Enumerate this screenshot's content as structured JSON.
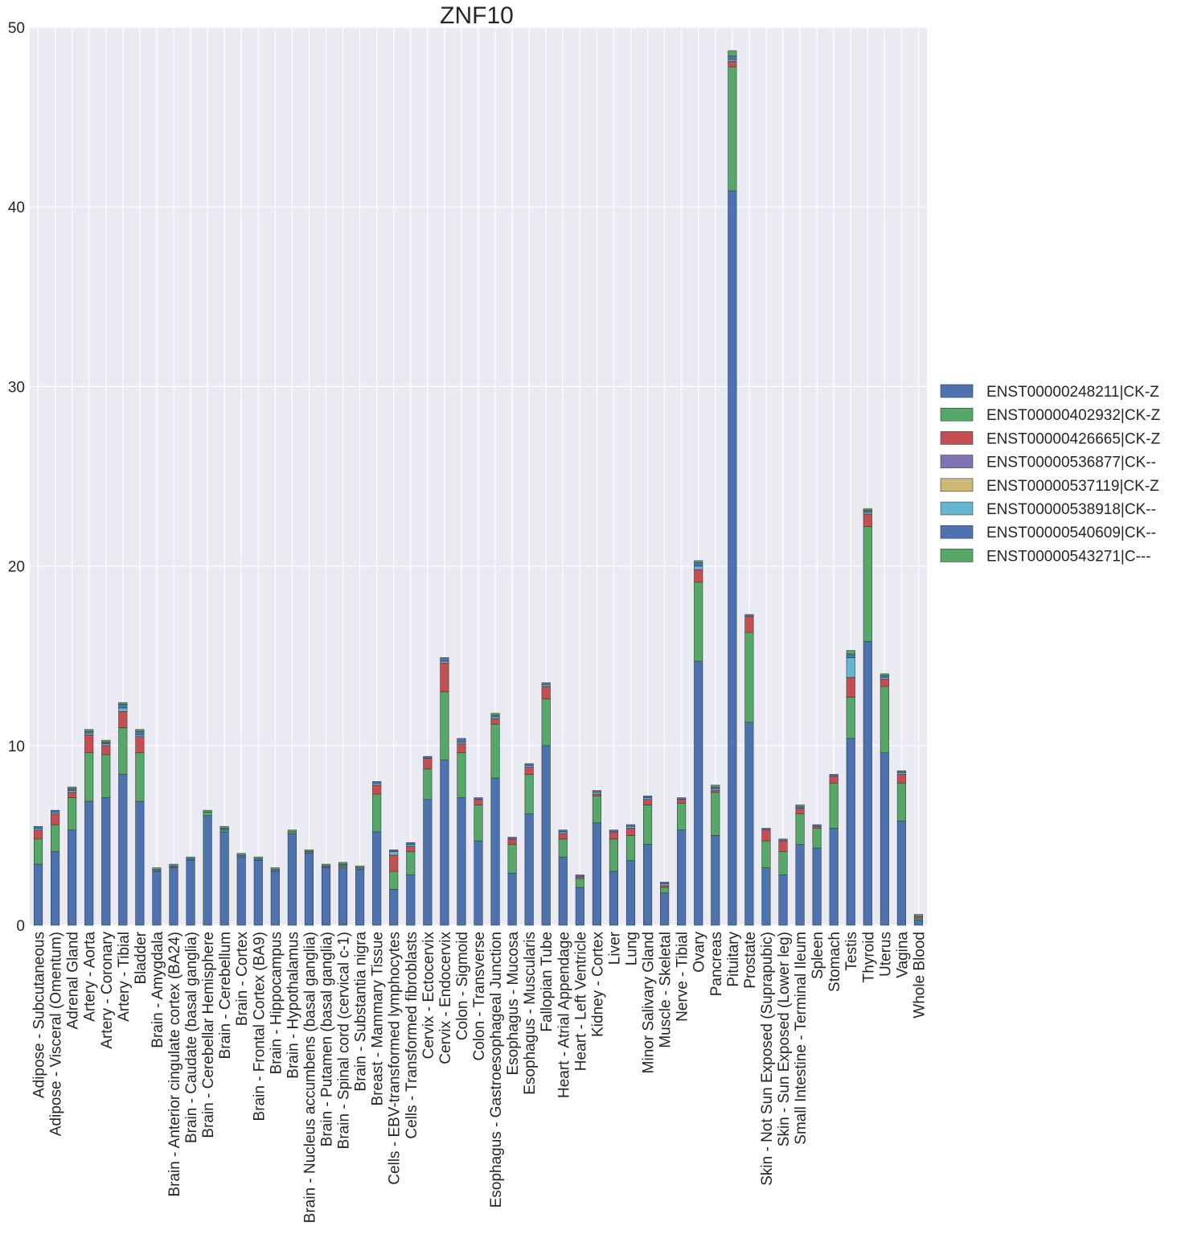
{
  "chart_data": {
    "type": "bar",
    "stacked": true,
    "title": "ZNF10",
    "xlabel": "",
    "ylabel": "",
    "ylim": [
      0,
      50
    ],
    "yticks": [
      "0",
      "10",
      "20",
      "30",
      "40",
      "50"
    ],
    "grid": true,
    "legend_position": "right",
    "categories": [
      "Adipose - Subcutaneous",
      "Adipose - Visceral (Omentum)",
      "Adrenal Gland",
      "Artery - Aorta",
      "Artery - Coronary",
      "Artery - Tibial",
      "Bladder",
      "Brain - Amygdala",
      "Brain - Anterior cingulate cortex (BA24)",
      "Brain - Caudate (basal ganglia)",
      "Brain - Cerebellar Hemisphere",
      "Brain - Cerebellum",
      "Brain - Cortex",
      "Brain - Frontal Cortex (BA9)",
      "Brain - Hippocampus",
      "Brain - Hypothalamus",
      "Brain - Nucleus accumbens (basal ganglia)",
      "Brain - Putamen (basal ganglia)",
      "Brain - Spinal cord (cervical c-1)",
      "Brain - Substantia nigra",
      "Breast - Mammary Tissue",
      "Cells - EBV-transformed lymphocytes",
      "Cells - Transformed fibroblasts",
      "Cervix - Ectocervix",
      "Cervix - Endocervix",
      "Colon - Sigmoid",
      "Colon - Transverse",
      "Esophagus - Gastroesophageal Junction",
      "Esophagus - Mucosa",
      "Esophagus - Muscularis",
      "Fallopian Tube",
      "Heart - Atrial Appendage",
      "Heart - Left Ventricle",
      "Kidney - Cortex",
      "Liver",
      "Lung",
      "Minor Salivary Gland",
      "Muscle - Skeletal",
      "Nerve - Tibial",
      "Ovary",
      "Pancreas",
      "Pituitary",
      "Prostate",
      "Skin - Not Sun Exposed (Suprapubic)",
      "Skin - Sun Exposed (Lower leg)",
      "Small Intestine - Terminal Ileum",
      "Spleen",
      "Stomach",
      "Testis",
      "Thyroid",
      "Uterus",
      "Vagina",
      "Whole Blood"
    ],
    "series": [
      {
        "name": "ENST00000248211|CK-Z",
        "color": "#4c72b0",
        "values": [
          3.4,
          4.1,
          5.3,
          6.9,
          7.1,
          8.4,
          6.9,
          3.0,
          3.2,
          3.6,
          6.1,
          5.2,
          3.8,
          3.6,
          3.0,
          5.1,
          4.0,
          3.2,
          3.2,
          3.1,
          5.2,
          2.0,
          2.8,
          7.0,
          9.2,
          7.1,
          4.7,
          8.2,
          2.9,
          6.2,
          10.0,
          3.8,
          2.1,
          5.7,
          3.0,
          3.6,
          4.5,
          1.8,
          5.3,
          14.7,
          5.0,
          40.9,
          11.3,
          3.2,
          2.8,
          4.5,
          4.3,
          5.4,
          10.4,
          15.8,
          9.6,
          5.8,
          0.3
        ]
      },
      {
        "name": "ENST00000402932|CK-Z",
        "color": "#55a868",
        "values": [
          1.4,
          1.5,
          1.8,
          2.7,
          2.4,
          2.6,
          2.7,
          0.0,
          0.0,
          0.0,
          0.2,
          0.1,
          0.0,
          0.0,
          0.0,
          0.1,
          0.0,
          0.0,
          0.1,
          0.0,
          2.1,
          1.0,
          1.3,
          1.7,
          3.8,
          2.5,
          2.0,
          3.0,
          1.6,
          2.2,
          2.6,
          1.0,
          0.5,
          1.5,
          1.8,
          1.4,
          2.2,
          0.3,
          1.5,
          4.4,
          2.4,
          6.9,
          5.0,
          1.5,
          1.3,
          1.7,
          1.1,
          2.5,
          2.3,
          6.4,
          3.7,
          2.1,
          0.1
        ]
      },
      {
        "name": "ENST00000426665|CK-Z",
        "color": "#c44e52",
        "values": [
          0.5,
          0.6,
          0.3,
          1.0,
          0.5,
          0.9,
          0.9,
          0.0,
          0.0,
          0.0,
          0.0,
          0.0,
          0.0,
          0.0,
          0.0,
          0.0,
          0.0,
          0.0,
          0.0,
          0.0,
          0.5,
          0.9,
          0.3,
          0.6,
          1.6,
          0.5,
          0.3,
          0.3,
          0.3,
          0.4,
          0.7,
          0.3,
          0.1,
          0.1,
          0.4,
          0.4,
          0.3,
          0.1,
          0.2,
          0.7,
          0.1,
          0.3,
          0.9,
          0.6,
          0.6,
          0.3,
          0.1,
          0.4,
          1.1,
          0.7,
          0.4,
          0.5,
          0.1
        ]
      },
      {
        "name": "ENST00000536877|CK--",
        "color": "#8172b2",
        "values": [
          0.0,
          0.0,
          0.0,
          0.0,
          0.0,
          0.0,
          0.0,
          0.0,
          0.0,
          0.0,
          0.0,
          0.0,
          0.0,
          0.0,
          0.0,
          0.0,
          0.0,
          0.0,
          0.0,
          0.0,
          0.0,
          0.0,
          0.0,
          0.0,
          0.0,
          0.0,
          0.0,
          0.0,
          0.0,
          0.0,
          0.0,
          0.0,
          0.0,
          0.0,
          0.0,
          0.0,
          0.0,
          0.0,
          0.0,
          0.0,
          0.0,
          0.0,
          0.0,
          0.0,
          0.0,
          0.0,
          0.0,
          0.0,
          0.0,
          0.0,
          0.0,
          0.0,
          0.0
        ]
      },
      {
        "name": "ENST00000537119|CK-Z",
        "color": "#ccb974",
        "values": [
          0.0,
          0.0,
          0.0,
          0.0,
          0.0,
          0.0,
          0.0,
          0.0,
          0.0,
          0.0,
          0.0,
          0.0,
          0.0,
          0.0,
          0.0,
          0.0,
          0.0,
          0.0,
          0.0,
          0.0,
          0.0,
          0.0,
          0.0,
          0.0,
          0.0,
          0.0,
          0.0,
          0.0,
          0.0,
          0.0,
          0.0,
          0.0,
          0.0,
          0.0,
          0.0,
          0.0,
          0.0,
          0.0,
          0.0,
          0.0,
          0.0,
          0.0,
          0.0,
          0.0,
          0.0,
          0.0,
          0.0,
          0.0,
          0.0,
          0.0,
          0.0,
          0.0,
          0.0
        ]
      },
      {
        "name": "ENST00000538918|CK--",
        "color": "#64b5cd",
        "values": [
          0.1,
          0.1,
          0.1,
          0.1,
          0.1,
          0.2,
          0.1,
          0.0,
          0.0,
          0.0,
          0.0,
          0.0,
          0.0,
          0.0,
          0.0,
          0.0,
          0.0,
          0.0,
          0.0,
          0.0,
          0.1,
          0.2,
          0.1,
          0.0,
          0.1,
          0.1,
          0.0,
          0.1,
          0.0,
          0.1,
          0.1,
          0.1,
          0.0,
          0.1,
          0.0,
          0.1,
          0.1,
          0.1,
          0.0,
          0.2,
          0.1,
          0.1,
          0.0,
          0.0,
          0.0,
          0.0,
          0.0,
          0.0,
          1.1,
          0.1,
          0.1,
          0.1,
          0.0
        ]
      },
      {
        "name": "ENST00000540609|CK--",
        "color": "#4c72b0",
        "values": [
          0.1,
          0.1,
          0.1,
          0.1,
          0.1,
          0.2,
          0.2,
          0.1,
          0.1,
          0.1,
          0.0,
          0.1,
          0.1,
          0.1,
          0.1,
          0.0,
          0.1,
          0.1,
          0.1,
          0.1,
          0.1,
          0.1,
          0.1,
          0.1,
          0.2,
          0.2,
          0.1,
          0.1,
          0.1,
          0.1,
          0.1,
          0.1,
          0.1,
          0.1,
          0.1,
          0.1,
          0.1,
          0.1,
          0.1,
          0.2,
          0.1,
          0.2,
          0.1,
          0.1,
          0.1,
          0.1,
          0.1,
          0.1,
          0.2,
          0.1,
          0.1,
          0.1,
          0.0
        ]
      },
      {
        "name": "ENST00000543271|C---",
        "color": "#55a868",
        "values": [
          0.0,
          0.0,
          0.1,
          0.1,
          0.1,
          0.1,
          0.1,
          0.1,
          0.1,
          0.1,
          0.1,
          0.1,
          0.1,
          0.1,
          0.1,
          0.1,
          0.1,
          0.1,
          0.1,
          0.1,
          0.0,
          0.0,
          0.0,
          0.0,
          0.0,
          0.0,
          0.0,
          0.1,
          0.0,
          0.0,
          0.0,
          0.0,
          0.0,
          0.0,
          0.0,
          0.0,
          0.0,
          0.0,
          0.0,
          0.1,
          0.1,
          0.3,
          0.0,
          0.0,
          0.0,
          0.1,
          0.0,
          0.0,
          0.2,
          0.1,
          0.1,
          0.0,
          0.1
        ]
      }
    ]
  }
}
